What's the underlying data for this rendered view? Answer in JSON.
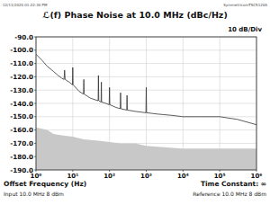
{
  "chart_data": {
    "type": "line",
    "title": "ℒ(f) Phase Noise at 10.0 MHz (dBc/Hz)",
    "header_left": "12/11/2020 01:22:30 PM",
    "header_right": "SymmetricomTSC5120A",
    "scale_label": "10 dB/Div",
    "x_label": "Offset Frequency (Hz)",
    "time_constant": "Time Constant: ∞",
    "input_label": "Input 10.0 MHz 8 dBm",
    "reference_label": "Reference 10.0 MHz 8 dBm",
    "log": "x",
    "grid": true,
    "xlim": [
      1,
      1000000
    ],
    "xticks": [
      {
        "value": 1,
        "label": "10⁰"
      },
      {
        "value": 10,
        "label": "10¹"
      },
      {
        "value": 100,
        "label": "10²"
      },
      {
        "value": 1000,
        "label": "10³"
      },
      {
        "value": 10000,
        "label": "10⁴"
      },
      {
        "value": 100000,
        "label": "10⁵"
      },
      {
        "value": 1000000,
        "label": "10⁶"
      }
    ],
    "ylim": [
      -190,
      -90
    ],
    "yticks": [
      {
        "value": -190,
        "label": "-190.0"
      },
      {
        "value": -180,
        "label": "-180.0"
      },
      {
        "value": -170,
        "label": "-170.0"
      },
      {
        "value": -160,
        "label": "-160.0"
      },
      {
        "value": -150,
        "label": "-150.0"
      },
      {
        "value": -140,
        "label": "-140.0"
      },
      {
        "value": -130,
        "label": "-130.0"
      },
      {
        "value": -120,
        "label": "-120.0"
      },
      {
        "value": -110,
        "label": "-110.0"
      },
      {
        "value": -100,
        "label": "-100.0"
      },
      {
        "value": -90,
        "label": "-90.0"
      }
    ],
    "series": [
      {
        "type": "area",
        "color": "#c8c8c8",
        "x": [
          1,
          2,
          3,
          5,
          10,
          20,
          50,
          100,
          200,
          500,
          1000,
          3000,
          10000,
          100000,
          1000000
        ],
        "values": [
          -158,
          -160,
          -163,
          -164,
          -165,
          -167,
          -168,
          -169,
          -170,
          -170,
          -172,
          -173,
          -174,
          -174,
          -174
        ]
      },
      {
        "type": "line",
        "color": "#333333",
        "x": [
          1,
          1.5,
          2,
          3,
          4,
          5,
          5.8,
          6,
          6.2,
          8,
          9.8,
          10,
          10.2,
          15,
          19.6,
          20,
          20.4,
          30,
          49,
          50,
          51,
          59,
          60,
          61,
          80,
          98,
          100,
          102,
          150,
          196,
          200,
          204,
          294,
          300,
          306,
          500,
          980,
          1000,
          1020,
          2000,
          5000,
          10000,
          30000,
          100000,
          300000,
          1000000
        ],
        "values": [
          -103,
          -108,
          -112,
          -116,
          -119,
          -121,
          -122,
          -115,
          -122,
          -124,
          -126,
          -113,
          -126,
          -131,
          -133,
          -122,
          -133,
          -136,
          -138,
          -119,
          -138,
          -139,
          -124,
          -139,
          -140,
          -141,
          -128,
          -141,
          -143,
          -144,
          -132,
          -144,
          -145,
          -134,
          -145,
          -146,
          -147,
          -128,
          -147,
          -148,
          -149,
          -150,
          -150,
          -150,
          -152,
          -156
        ]
      }
    ]
  }
}
